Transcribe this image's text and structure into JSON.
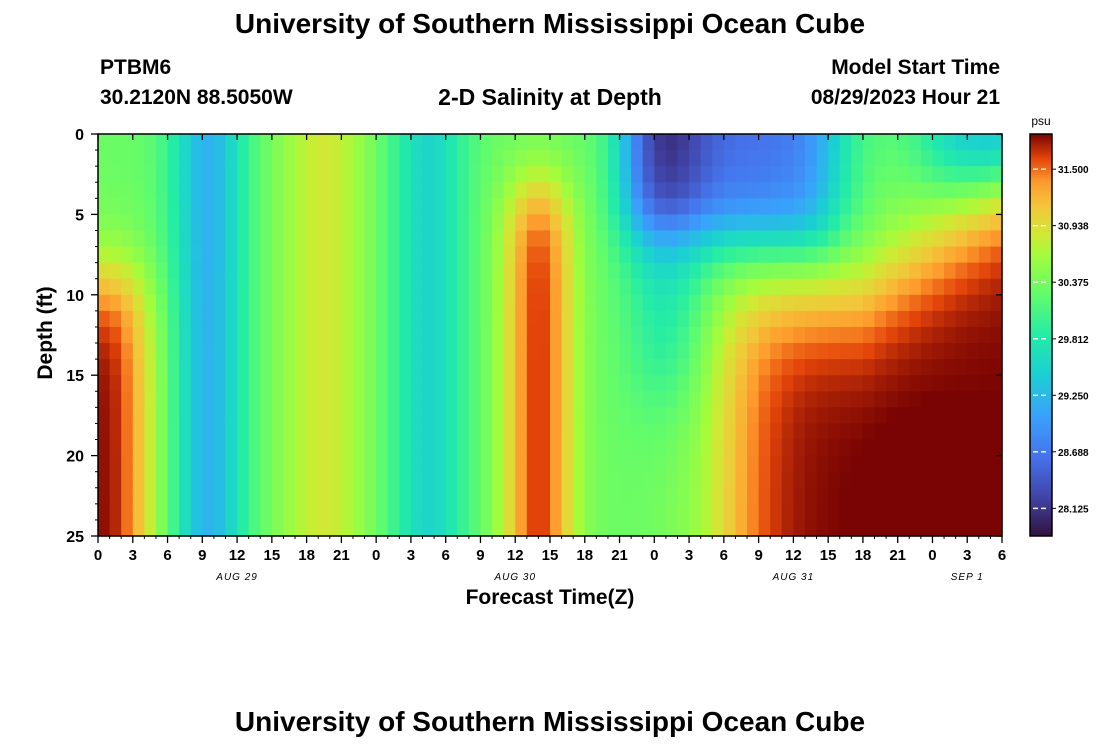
{
  "header": {
    "title": "University of Southern Mississippi Ocean Cube",
    "station_id": "PTBM6",
    "station_coords": "30.2120N  88.5050W",
    "plot_title": "2-D Salinity at Depth",
    "start_label": "Model Start Time",
    "start_value": "08/29/2023 Hour 21"
  },
  "footer": {
    "title": "University of Southern Mississippi Ocean Cube"
  },
  "chart_data": {
    "type": "heatmap",
    "xlabel": "Forecast Time(Z)",
    "ylabel": "Depth (ft)",
    "x_tick_labels": [
      "0",
      "3",
      "6",
      "9",
      "12",
      "15",
      "18",
      "21",
      "0",
      "3",
      "6",
      "9",
      "12",
      "15",
      "18",
      "21",
      "0",
      "3",
      "6",
      "9",
      "12",
      "15",
      "18",
      "21",
      "0",
      "3",
      "6"
    ],
    "day_labels": [
      {
        "label": "AUG 29",
        "tick_index": 4
      },
      {
        "label": "AUG 30",
        "tick_index": 12
      },
      {
        "label": "AUG 31",
        "tick_index": 20
      },
      {
        "label": "SEP 1",
        "tick_index": 25
      }
    ],
    "ylim": [
      0,
      25
    ],
    "y_ticks": [
      0,
      5,
      10,
      15,
      20,
      25
    ],
    "x_range_hours": [
      0,
      78
    ],
    "colorbar": {
      "unit": "psu",
      "ticks": [
        "31.500",
        "30.938",
        "30.375",
        "29.812",
        "29.250",
        "28.688",
        "28.125"
      ],
      "range": [
        27.85,
        31.85
      ]
    },
    "features": [
      {
        "name": "high salinity bottom layer day 1",
        "hours": [
          0,
          6
        ],
        "depth": [
          8,
          25
        ],
        "salinity": 31.6
      },
      {
        "name": "low salinity column",
        "hours": [
          6,
          13
        ],
        "depth": [
          0,
          25
        ],
        "salinity": 29.3
      },
      {
        "name": "moderate column",
        "hours": [
          15,
          24
        ],
        "depth": [
          0,
          25
        ],
        "salinity": 30.7
      },
      {
        "name": "low salinity column",
        "hours": [
          24,
          33
        ],
        "depth": [
          0,
          25
        ],
        "salinity": 29.6
      },
      {
        "name": "high salinity column",
        "hours": [
          33,
          43
        ],
        "depth": [
          4,
          25
        ],
        "salinity": 31.3
      },
      {
        "name": "fresh surface layer",
        "hours": [
          44,
          66
        ],
        "depth": [
          0,
          7
        ],
        "salinity": 28.7
      },
      {
        "name": "high salinity bottom layer day 3",
        "hours": [
          54,
          78
        ],
        "depth": [
          8,
          25
        ],
        "salinity": 31.65
      }
    ]
  }
}
